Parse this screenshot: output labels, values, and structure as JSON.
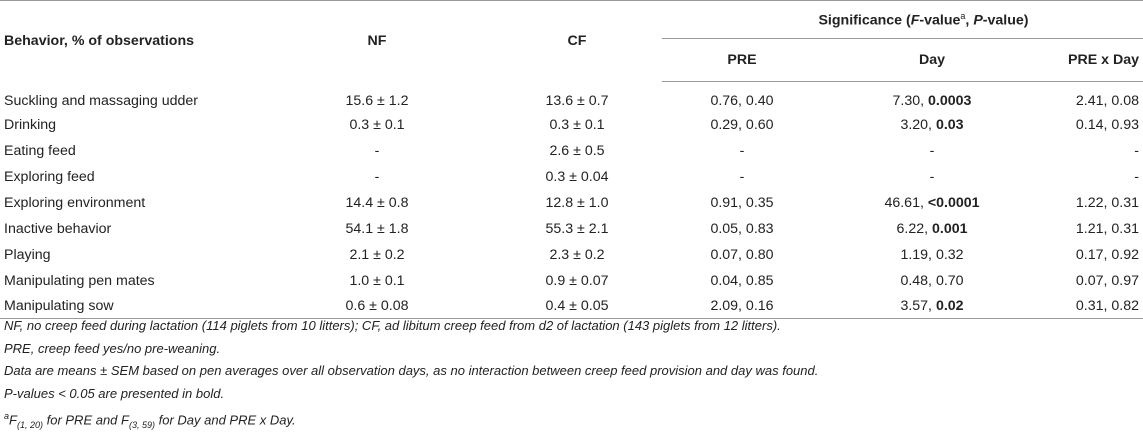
{
  "header": {
    "behavior": "Behavior, % of observations",
    "nf": "NF",
    "cf": "CF",
    "significance_prefix": "Significance (",
    "f_value": "F",
    "f_value_suffix": "-value",
    "sup_a": "a",
    "sep": ", ",
    "p_value": "P",
    "p_value_suffix": "-value)",
    "pre": "PRE",
    "day": "Day",
    "interaction": "PRE x Day"
  },
  "rows": [
    {
      "behavior": "Suckling and massaging udder",
      "nf": "15.6 ± 1.2",
      "cf": "13.6 ± 0.7",
      "pre": "0.76, 0.40",
      "day_f": "7.30, ",
      "day_p": "0.0003",
      "day_bold": true,
      "interaction": "2.41, 0.08"
    },
    {
      "behavior": "Drinking",
      "nf": "0.3 ± 0.1",
      "cf": "0.3 ± 0.1",
      "pre": "0.29, 0.60",
      "day_f": "3.20, ",
      "day_p": "0.03",
      "day_bold": true,
      "interaction": "0.14, 0.93"
    },
    {
      "behavior": "Eating feed",
      "nf": "-",
      "cf": "2.6 ± 0.5",
      "pre": "-",
      "day_f": "",
      "day_p": "-",
      "day_bold": false,
      "interaction": "-"
    },
    {
      "behavior": "Exploring feed",
      "nf": "-",
      "cf": "0.3 ± 0.04",
      "pre": "-",
      "day_f": "",
      "day_p": "-",
      "day_bold": false,
      "interaction": "-"
    },
    {
      "behavior": "Exploring environment",
      "nf": "14.4 ± 0.8",
      "cf": "12.8 ± 1.0",
      "pre": "0.91, 0.35",
      "day_f": "46.61, ",
      "day_p": "<0.0001",
      "day_bold": true,
      "interaction": "1.22, 0.31"
    },
    {
      "behavior": "Inactive behavior",
      "nf": "54.1 ± 1.8",
      "cf": "55.3 ± 2.1",
      "pre": "0.05, 0.83",
      "day_f": "6.22, ",
      "day_p": "0.001",
      "day_bold": true,
      "interaction": "1.21, 0.31"
    },
    {
      "behavior": "Playing",
      "nf": "2.1 ± 0.2",
      "cf": "2.3 ± 0.2",
      "pre": "0.07, 0.80",
      "day_f": "1.19, ",
      "day_p": "0.32",
      "day_bold": false,
      "interaction": "0.17, 0.92"
    },
    {
      "behavior": "Manipulating pen mates",
      "nf": "1.0 ± 0.1",
      "cf": "0.9 ± 0.07",
      "pre": "0.04, 0.85",
      "day_f": "0.48, ",
      "day_p": "0.70",
      "day_bold": false,
      "interaction": "0.07, 0.97"
    },
    {
      "behavior": "Manipulating sow",
      "nf": "0.6 ± 0.08",
      "cf": "0.4 ± 0.05",
      "pre": "2.09, 0.16",
      "day_f": "3.57, ",
      "day_p": "0.02",
      "day_bold": true,
      "interaction": "0.31, 0.82"
    }
  ],
  "notes": {
    "n1": "NF, no creep feed during lactation (114 piglets from 10 litters); CF, ad libitum creep feed from d2 of lactation (143 piglets from 12 litters).",
    "n2": "PRE, creep feed yes/no pre-weaning.",
    "n3": "Data are means ± SEM based on pen averages over all observation days, as no interaction between creep feed provision and day was found.",
    "n4": "P-values < 0.05 are presented in bold.",
    "n5_sup": "a",
    "n5_f1": "F",
    "n5_sub1": "(1, 20)",
    "n5_mid": " for PRE and ",
    "n5_f2": "F",
    "n5_sub2": "(3, 59)",
    "n5_end": " for Day and PRE x Day."
  }
}
